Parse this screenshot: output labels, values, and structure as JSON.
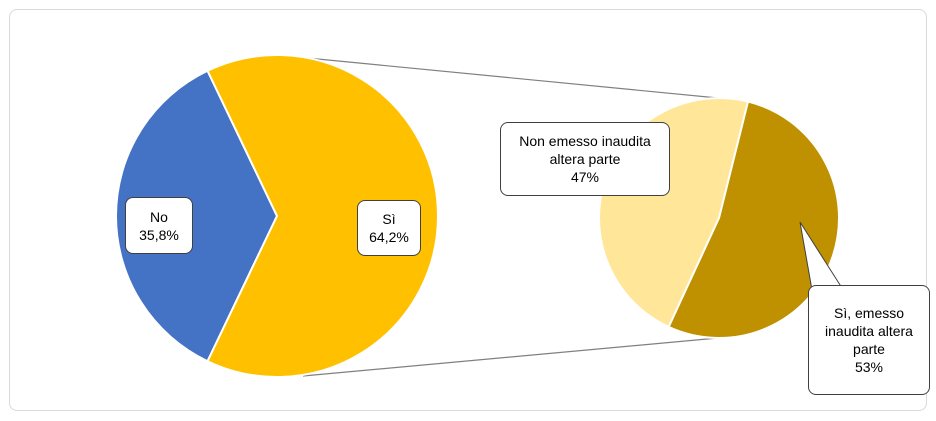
{
  "chart_data": [
    {
      "type": "pie",
      "categories": [
        "No",
        "Sì"
      ],
      "values": [
        35.8,
        64.2
      ],
      "value_labels": [
        "35,8%",
        "64,2%"
      ],
      "colors": [
        "#4472c4",
        "#ffc000"
      ]
    },
    {
      "type": "pie",
      "categories": [
        "Non emesso inaudita altera parte",
        "Sì, emesso inaudita altera parte"
      ],
      "values": [
        47,
        53
      ],
      "value_labels": [
        "47%",
        "53%"
      ],
      "colors": [
        "#ffe699",
        "#bf9000"
      ]
    }
  ]
}
